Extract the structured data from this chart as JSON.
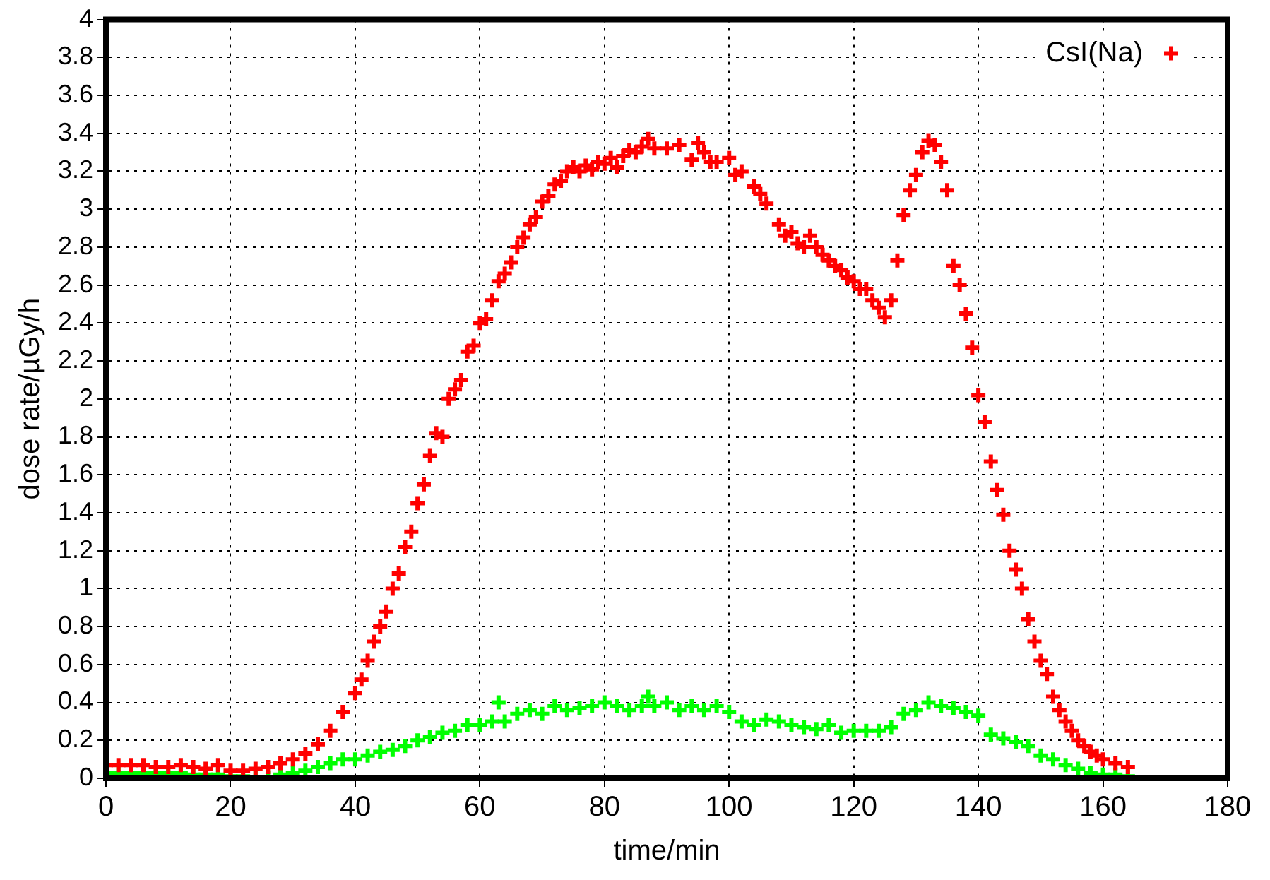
{
  "chart_data": {
    "type": "scatter",
    "xlabel": "time/min",
    "ylabel": "dose rate/µGy/h",
    "xlim": [
      0,
      180
    ],
    "xticks": [
      0,
      20,
      40,
      60,
      80,
      100,
      120,
      140,
      160,
      180
    ],
    "ylim": [
      0,
      4
    ],
    "yticks": [
      0,
      0.2,
      0.4,
      0.6,
      0.8,
      1,
      1.2,
      1.4,
      1.6,
      1.8,
      2,
      2.2,
      2.4,
      2.6,
      2.8,
      3,
      3.2,
      3.4,
      3.6,
      3.8,
      4
    ],
    "grid": true,
    "legend": "top right",
    "marker": "cross",
    "series": [
      {
        "name": "CsI(Na)",
        "color": "#ff0000",
        "x": [
          0,
          2,
          4,
          6,
          8,
          10,
          12,
          14,
          16,
          18,
          20,
          22,
          24,
          26,
          28,
          30,
          32,
          34,
          36,
          38,
          40,
          41,
          42,
          43,
          44,
          45,
          46,
          47,
          48,
          49,
          50,
          51,
          52,
          53,
          54,
          55,
          56,
          57,
          58,
          59,
          60,
          61,
          62,
          63,
          64,
          65,
          66,
          67,
          68,
          69,
          70,
          71,
          72,
          73,
          74,
          75,
          76,
          77,
          78,
          79,
          80,
          81,
          82,
          83,
          84,
          85,
          86,
          87,
          88,
          90,
          92,
          94,
          95,
          96,
          97,
          98,
          100,
          101,
          102,
          104,
          105,
          106,
          108,
          109,
          110,
          111,
          112,
          113,
          114,
          115,
          116,
          117,
          118,
          119,
          120,
          121,
          122,
          123,
          124,
          125,
          126,
          127,
          128,
          129,
          130,
          131,
          132,
          133,
          134,
          135,
          136,
          137,
          138,
          139,
          140,
          141,
          142,
          143,
          144,
          145,
          146,
          147,
          148,
          149,
          150,
          151,
          152,
          153,
          154,
          155,
          156,
          157,
          158,
          159,
          160,
          162,
          164
        ],
        "values": [
          0.07,
          0.07,
          0.07,
          0.07,
          0.06,
          0.06,
          0.07,
          0.06,
          0.05,
          0.07,
          0.04,
          0.04,
          0.05,
          0.06,
          0.08,
          0.1,
          0.13,
          0.18,
          0.25,
          0.35,
          0.45,
          0.52,
          0.62,
          0.72,
          0.8,
          0.88,
          1.0,
          1.08,
          1.22,
          1.3,
          1.45,
          1.55,
          1.7,
          1.82,
          1.8,
          2.0,
          2.05,
          2.1,
          2.25,
          2.28,
          2.4,
          2.42,
          2.52,
          2.62,
          2.66,
          2.72,
          2.8,
          2.85,
          2.92,
          2.96,
          3.04,
          3.07,
          3.13,
          3.15,
          3.2,
          3.22,
          3.2,
          3.23,
          3.21,
          3.25,
          3.24,
          3.27,
          3.22,
          3.28,
          3.31,
          3.3,
          3.33,
          3.37,
          3.32,
          3.32,
          3.34,
          3.26,
          3.35,
          3.3,
          3.25,
          3.25,
          3.27,
          3.18,
          3.2,
          3.12,
          3.08,
          3.03,
          2.92,
          2.86,
          2.88,
          2.82,
          2.8,
          2.86,
          2.8,
          2.76,
          2.73,
          2.7,
          2.68,
          2.64,
          2.62,
          2.58,
          2.58,
          2.52,
          2.48,
          2.43,
          2.52,
          2.73,
          2.97,
          3.1,
          3.18,
          3.3,
          3.36,
          3.34,
          3.25,
          3.1,
          2.7,
          2.6,
          2.45,
          2.27,
          2.02,
          1.88,
          1.67,
          1.52,
          1.39,
          1.2,
          1.1,
          1.0,
          0.84,
          0.72,
          0.62,
          0.55,
          0.43,
          0.36,
          0.3,
          0.25,
          0.2,
          0.17,
          0.14,
          0.12,
          0.1,
          0.08,
          0.06
        ]
      },
      {
        "color": "#00ff00",
        "x": [
          0,
          2,
          4,
          6,
          8,
          10,
          12,
          14,
          16,
          18,
          20,
          22,
          24,
          26,
          28,
          30,
          32,
          34,
          36,
          38,
          40,
          42,
          44,
          46,
          48,
          50,
          52,
          54,
          56,
          58,
          60,
          62,
          63,
          64,
          66,
          68,
          70,
          72,
          74,
          76,
          78,
          80,
          82,
          84,
          86,
          87,
          88,
          90,
          92,
          94,
          96,
          98,
          100,
          102,
          104,
          106,
          108,
          110,
          112,
          114,
          116,
          118,
          120,
          122,
          124,
          126,
          128,
          130,
          132,
          134,
          136,
          138,
          140,
          142,
          144,
          146,
          148,
          150,
          152,
          154,
          156,
          158,
          160,
          162,
          164
        ],
        "values": [
          0.03,
          0.03,
          0.03,
          0.03,
          0.03,
          0.03,
          0.03,
          0.02,
          0.02,
          0.02,
          0.01,
          0.01,
          0.0,
          0.0,
          0.02,
          0.03,
          0.04,
          0.06,
          0.08,
          0.1,
          0.1,
          0.12,
          0.14,
          0.15,
          0.17,
          0.2,
          0.22,
          0.24,
          0.25,
          0.28,
          0.28,
          0.3,
          0.4,
          0.3,
          0.34,
          0.36,
          0.34,
          0.38,
          0.36,
          0.37,
          0.38,
          0.4,
          0.38,
          0.36,
          0.38,
          0.43,
          0.38,
          0.4,
          0.36,
          0.38,
          0.36,
          0.38,
          0.35,
          0.3,
          0.28,
          0.31,
          0.3,
          0.28,
          0.27,
          0.26,
          0.28,
          0.24,
          0.25,
          0.25,
          0.25,
          0.27,
          0.34,
          0.36,
          0.4,
          0.38,
          0.37,
          0.35,
          0.33,
          0.23,
          0.21,
          0.19,
          0.17,
          0.12,
          0.1,
          0.07,
          0.05,
          0.03,
          0.02,
          0.02,
          0.01
        ]
      }
    ]
  }
}
